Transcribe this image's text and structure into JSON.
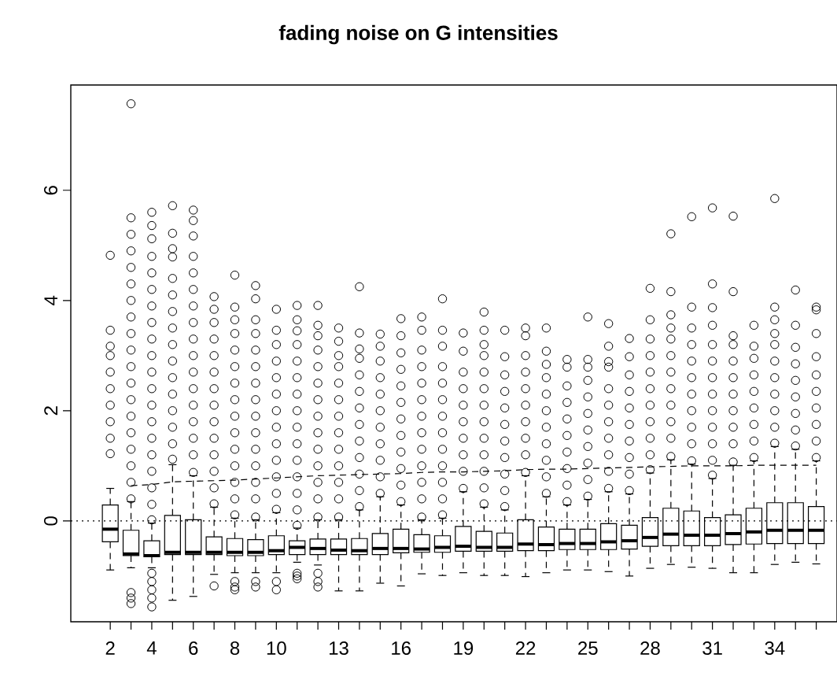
{
  "chart_data": {
    "type": "box",
    "title": "fading noise on G intensities",
    "color": "#000000",
    "categories": [
      "2",
      null,
      "4",
      null,
      "6",
      null,
      "8",
      null,
      "10",
      null,
      null,
      "13",
      null,
      null,
      "16",
      null,
      null,
      "19",
      null,
      null,
      "22",
      null,
      null,
      "25",
      null,
      null,
      "28",
      null,
      null,
      "31",
      null,
      null,
      "34",
      null,
      null
    ],
    "boxes": [
      {
        "low": -0.89,
        "q1": -0.38,
        "median": -0.15,
        "q3": 0.29,
        "high": 0.59,
        "outliers": [
          1.22,
          1.5,
          1.8,
          2.1,
          2.4,
          2.7,
          3.0,
          3.17,
          3.46,
          4.82
        ]
      },
      {
        "low": -0.85,
        "q1": -0.63,
        "median": -0.6,
        "q3": -0.17,
        "high": 0.35,
        "outliers": [
          -1.3,
          -1.4,
          -1.5,
          0.4,
          0.7,
          1.0,
          1.3,
          1.6,
          1.9,
          2.2,
          2.5,
          2.8,
          3.1,
          3.4,
          3.7,
          4.0,
          4.3,
          4.6,
          4.9,
          5.2,
          5.5,
          7.57
        ]
      },
      {
        "low": -0.85,
        "q1": -0.65,
        "median": -0.63,
        "q3": -0.36,
        "high": -0.04,
        "outliers": [
          -0.95,
          -1.1,
          -1.25,
          -1.4,
          -1.56,
          0.02,
          0.3,
          0.6,
          0.9,
          1.2,
          1.5,
          1.8,
          2.1,
          2.4,
          2.7,
          3.0,
          3.3,
          3.6,
          3.9,
          4.2,
          4.5,
          4.8,
          5.12,
          5.36,
          5.6
        ]
      },
      {
        "low": -1.44,
        "q1": -0.61,
        "median": -0.57,
        "q3": 0.1,
        "high": 1.02,
        "outliers": [
          1.12,
          1.4,
          1.7,
          2.0,
          2.3,
          2.6,
          2.9,
          3.2,
          3.5,
          3.8,
          4.1,
          4.4,
          4.79,
          4.94,
          5.22,
          5.72
        ]
      },
      {
        "low": -1.37,
        "q1": -0.61,
        "median": -0.57,
        "q3": 0.02,
        "high": 0.82,
        "outliers": [
          0.88,
          1.2,
          1.5,
          1.8,
          2.1,
          2.4,
          2.7,
          3.0,
          3.3,
          3.6,
          3.9,
          4.2,
          4.5,
          4.8,
          5.17,
          5.45,
          5.64
        ]
      },
      {
        "low": -0.97,
        "q1": -0.61,
        "median": -0.57,
        "q3": -0.29,
        "high": 0.25,
        "outliers": [
          -1.18,
          0.31,
          0.6,
          0.9,
          1.2,
          1.5,
          1.8,
          2.1,
          2.4,
          2.7,
          3.0,
          3.3,
          3.6,
          3.84,
          4.07
        ]
      },
      {
        "low": -0.94,
        "q1": -0.63,
        "median": -0.57,
        "q3": -0.32,
        "high": 0.05,
        "outliers": [
          -1.1,
          -1.2,
          -1.25,
          0.11,
          0.4,
          0.7,
          1.0,
          1.3,
          1.6,
          1.9,
          2.2,
          2.5,
          2.8,
          3.1,
          3.4,
          3.65,
          3.88,
          4.46
        ]
      },
      {
        "low": -0.94,
        "q1": -0.63,
        "median": -0.57,
        "q3": -0.34,
        "high": 0.02,
        "outliers": [
          -1.1,
          -1.2,
          0.07,
          0.4,
          0.7,
          1.0,
          1.3,
          1.6,
          1.9,
          2.2,
          2.5,
          2.8,
          3.1,
          3.4,
          3.65,
          4.03,
          4.27
        ]
      },
      {
        "low": -0.94,
        "q1": -0.61,
        "median": -0.54,
        "q3": -0.27,
        "high": 0.15,
        "outliers": [
          -1.1,
          -1.25,
          0.21,
          0.5,
          0.8,
          1.1,
          1.4,
          1.7,
          2.0,
          2.3,
          2.6,
          2.9,
          3.2,
          3.46,
          3.84
        ]
      },
      {
        "low": -0.75,
        "q1": -0.61,
        "median": -0.48,
        "q3": -0.36,
        "high": -0.13,
        "outliers": [
          -0.95,
          -1.0,
          -1.05,
          -0.08,
          0.2,
          0.5,
          0.8,
          1.1,
          1.4,
          1.7,
          2.0,
          2.3,
          2.6,
          2.9,
          3.2,
          3.45,
          3.65,
          3.91
        ]
      },
      {
        "low": -0.8,
        "q1": -0.61,
        "median": -0.5,
        "q3": -0.33,
        "high": 0.02,
        "outliers": [
          -0.95,
          -1.1,
          -1.2,
          0.07,
          0.4,
          0.7,
          1.0,
          1.3,
          1.6,
          1.9,
          2.2,
          2.5,
          2.8,
          3.1,
          3.36,
          3.55,
          3.91
        ]
      },
      {
        "low": -1.27,
        "q1": -0.61,
        "median": -0.53,
        "q3": -0.33,
        "high": 0.02,
        "outliers": [
          0.07,
          0.4,
          0.7,
          1.0,
          1.3,
          1.6,
          1.9,
          2.2,
          2.5,
          2.8,
          3.0,
          3.26,
          3.5
        ]
      },
      {
        "low": -1.27,
        "q1": -0.61,
        "median": -0.54,
        "q3": -0.32,
        "high": 0.2,
        "outliers": [
          0.26,
          0.55,
          0.85,
          1.15,
          1.45,
          1.75,
          2.05,
          2.35,
          2.65,
          2.95,
          3.12,
          3.41,
          4.25
        ]
      },
      {
        "low": -1.13,
        "q1": -0.61,
        "median": -0.5,
        "q3": -0.23,
        "high": 0.44,
        "outliers": [
          0.5,
          0.8,
          1.1,
          1.4,
          1.7,
          2.0,
          2.3,
          2.6,
          2.9,
          3.17,
          3.39
        ]
      },
      {
        "low": -1.18,
        "q1": -0.58,
        "median": -0.5,
        "q3": -0.15,
        "high": 0.29,
        "outliers": [
          0.35,
          0.65,
          0.95,
          1.25,
          1.55,
          1.85,
          2.15,
          2.45,
          2.75,
          3.05,
          3.36,
          3.67
        ]
      },
      {
        "low": -0.96,
        "q1": -0.57,
        "median": -0.51,
        "q3": -0.25,
        "high": 0.02,
        "outliers": [
          0.07,
          0.4,
          0.7,
          1.0,
          1.3,
          1.6,
          1.9,
          2.2,
          2.5,
          2.8,
          3.1,
          3.46,
          3.7
        ]
      },
      {
        "low": -0.99,
        "q1": -0.57,
        "median": -0.48,
        "q3": -0.27,
        "high": 0.05,
        "outliers": [
          0.11,
          0.4,
          0.7,
          1.0,
          1.3,
          1.6,
          1.9,
          2.2,
          2.5,
          2.8,
          3.17,
          3.46,
          4.03
        ]
      },
      {
        "low": -0.94,
        "q1": -0.55,
        "median": -0.46,
        "q3": -0.1,
        "high": 0.53,
        "outliers": [
          0.59,
          0.9,
          1.2,
          1.5,
          1.8,
          2.1,
          2.4,
          2.7,
          3.08,
          3.41
        ]
      },
      {
        "low": -0.99,
        "q1": -0.55,
        "median": -0.48,
        "q3": -0.19,
        "high": 0.25,
        "outliers": [
          0.31,
          0.6,
          0.9,
          1.2,
          1.5,
          1.8,
          2.1,
          2.4,
          2.7,
          3.0,
          3.2,
          3.46,
          3.79
        ]
      },
      {
        "low": -0.99,
        "q1": -0.55,
        "median": -0.48,
        "q3": -0.22,
        "high": 0.2,
        "outliers": [
          0.26,
          0.55,
          0.85,
          1.15,
          1.45,
          1.75,
          2.05,
          2.35,
          2.65,
          2.98,
          3.46
        ]
      },
      {
        "low": -1.01,
        "q1": -0.54,
        "median": -0.42,
        "q3": 0.02,
        "high": 0.82,
        "outliers": [
          0.88,
          1.2,
          1.5,
          1.8,
          2.1,
          2.4,
          2.7,
          3.0,
          3.36,
          3.5
        ]
      },
      {
        "low": -0.94,
        "q1": -0.54,
        "median": -0.43,
        "q3": -0.11,
        "high": 0.44,
        "outliers": [
          0.5,
          0.8,
          1.1,
          1.4,
          1.7,
          2.0,
          2.3,
          2.6,
          2.84,
          3.08,
          3.5
        ]
      },
      {
        "low": -0.89,
        "q1": -0.52,
        "median": -0.41,
        "q3": -0.15,
        "high": 0.29,
        "outliers": [
          0.35,
          0.65,
          0.95,
          1.25,
          1.55,
          1.85,
          2.15,
          2.45,
          2.79,
          2.93
        ]
      },
      {
        "low": -0.89,
        "q1": -0.52,
        "median": -0.41,
        "q3": -0.15,
        "high": 0.39,
        "outliers": [
          0.45,
          0.75,
          1.05,
          1.35,
          1.65,
          1.95,
          2.25,
          2.55,
          2.79,
          2.93,
          3.7
        ]
      },
      {
        "low": -0.92,
        "q1": -0.52,
        "median": -0.38,
        "q3": -0.05,
        "high": 0.53,
        "outliers": [
          0.59,
          0.9,
          1.2,
          1.5,
          1.8,
          2.1,
          2.4,
          2.79,
          2.89,
          3.17,
          3.58
        ]
      },
      {
        "low": -1.0,
        "q1": -0.51,
        "median": -0.36,
        "q3": -0.08,
        "high": 0.49,
        "outliers": [
          0.55,
          0.85,
          1.15,
          1.45,
          1.75,
          2.05,
          2.35,
          2.65,
          2.98,
          3.31
        ]
      },
      {
        "low": -0.86,
        "q1": -0.46,
        "median": -0.3,
        "q3": 0.06,
        "high": 0.87,
        "outliers": [
          0.93,
          1.2,
          1.5,
          1.8,
          2.1,
          2.4,
          2.7,
          3.0,
          3.3,
          3.65,
          4.22
        ]
      },
      {
        "low": -0.79,
        "q1": -0.45,
        "median": -0.24,
        "q3": 0.23,
        "high": 1.11,
        "outliers": [
          1.17,
          1.5,
          1.8,
          2.1,
          2.4,
          2.7,
          3.0,
          3.3,
          3.5,
          3.74,
          4.16,
          5.21
        ]
      },
      {
        "low": -0.84,
        "q1": -0.45,
        "median": -0.26,
        "q3": 0.18,
        "high": 1.03,
        "outliers": [
          1.09,
          1.4,
          1.7,
          2.0,
          2.3,
          2.6,
          2.9,
          3.2,
          3.5,
          3.88,
          5.52
        ]
      },
      {
        "low": -0.86,
        "q1": -0.45,
        "median": -0.26,
        "q3": 0.06,
        "high": 0.77,
        "outliers": [
          0.83,
          1.1,
          1.4,
          1.7,
          2.0,
          2.3,
          2.6,
          2.9,
          3.2,
          3.55,
          3.87,
          4.3,
          5.68
        ]
      },
      {
        "low": -0.94,
        "q1": -0.43,
        "median": -0.23,
        "q3": 0.11,
        "high": 1.01,
        "outliers": [
          1.07,
          1.4,
          1.7,
          2.0,
          2.3,
          2.6,
          2.9,
          3.2,
          3.36,
          4.16,
          5.53
        ]
      },
      {
        "low": -0.94,
        "q1": -0.42,
        "median": -0.2,
        "q3": 0.23,
        "high": 1.09,
        "outliers": [
          1.15,
          1.45,
          1.75,
          2.05,
          2.35,
          2.65,
          2.95,
          3.17,
          3.55
        ]
      },
      {
        "low": -0.79,
        "q1": -0.41,
        "median": -0.17,
        "q3": 0.33,
        "high": 1.35,
        "outliers": [
          1.41,
          1.7,
          2.0,
          2.3,
          2.6,
          2.9,
          3.2,
          3.4,
          3.65,
          3.88,
          5.85
        ]
      },
      {
        "low": -0.75,
        "q1": -0.41,
        "median": -0.17,
        "q3": 0.33,
        "high": 1.3,
        "outliers": [
          1.36,
          1.65,
          1.95,
          2.25,
          2.55,
          2.85,
          3.15,
          3.55,
          4.19
        ]
      },
      {
        "low": -0.78,
        "q1": -0.41,
        "median": -0.17,
        "q3": 0.26,
        "high": 1.09,
        "outliers": [
          1.15,
          1.45,
          1.75,
          2.05,
          2.35,
          2.65,
          2.98,
          3.4,
          3.83,
          3.88
        ]
      }
    ],
    "series": [
      {
        "type": "line",
        "color": "#000000",
        "line_style": "dashed",
        "values": [
          null,
          0.64,
          0.66,
          0.71,
          0.72,
          0.73,
          0.74,
          0.76,
          0.78,
          0.8,
          0.82,
          0.83,
          0.84,
          0.85,
          0.86,
          0.88,
          0.89,
          0.89,
          0.9,
          0.91,
          0.93,
          0.94,
          0.94,
          0.95,
          0.96,
          0.97,
          0.98,
          0.99,
          1.0,
          1.0,
          1.0,
          1.01,
          1.01,
          1.01,
          1.01
        ]
      }
    ],
    "ref_lines": [
      {
        "axis": "y",
        "value": 0,
        "line_style": "dotted"
      }
    ],
    "ylim": [
      -1.83,
      7.91
    ],
    "yticks": [
      0,
      2,
      4,
      6
    ]
  }
}
